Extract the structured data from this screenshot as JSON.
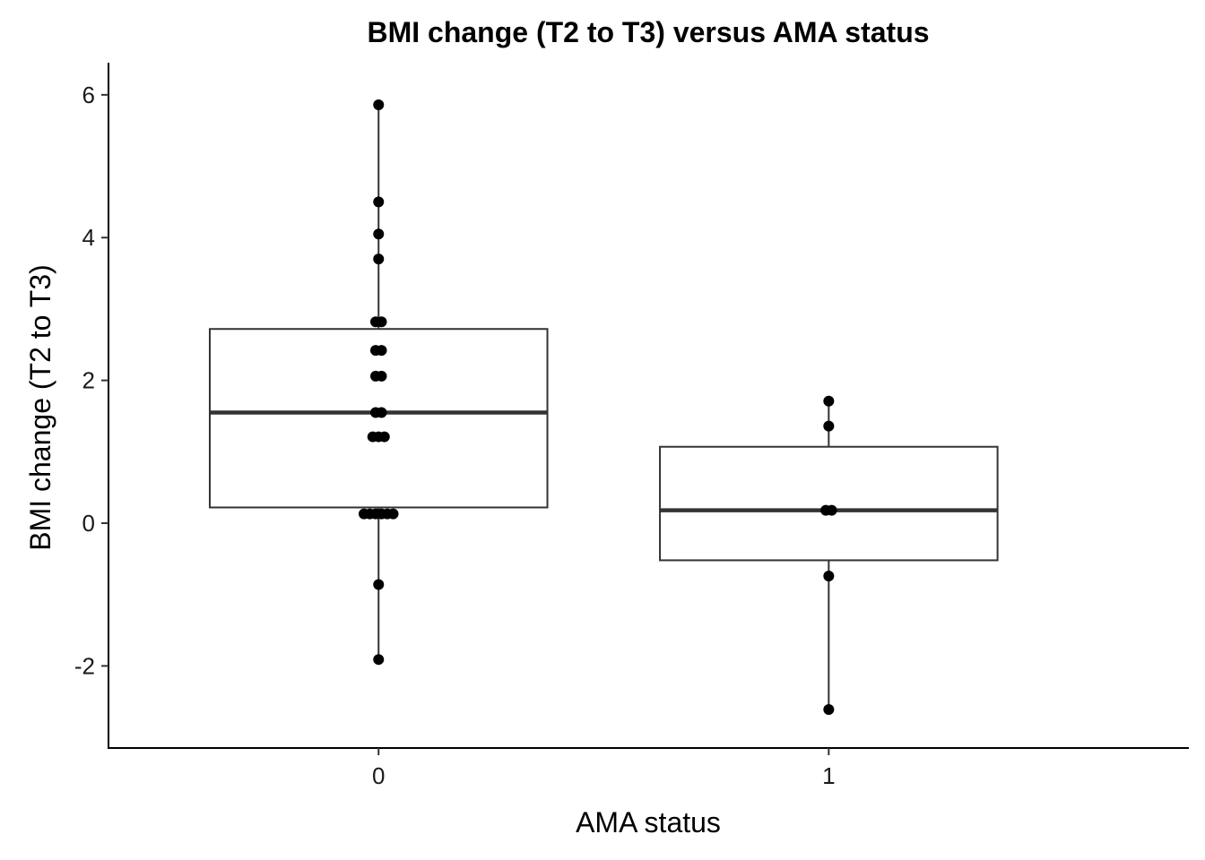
{
  "chart_data": {
    "type": "boxplot",
    "title": "BMI change (T2 to T3) versus AMA status",
    "xlabel": "AMA status",
    "ylabel": "BMI change (T2 to T3)",
    "categories": [
      "0",
      "1"
    ],
    "ylim": [
      -3.15,
      6.45
    ],
    "y_ticks": [
      -2,
      0,
      2,
      4,
      6
    ],
    "y_tick_labels": [
      "-2",
      "0",
      "2",
      "4",
      "6"
    ],
    "grid": false,
    "legend": "none",
    "boxes": [
      {
        "category": "0",
        "q1": 0.22,
        "median": 1.55,
        "q3": 2.72,
        "whisker_low": -1.91,
        "whisker_high": 5.86
      },
      {
        "category": "1",
        "q1": -0.52,
        "median": 0.18,
        "q3": 1.07,
        "whisker_low": -2.61,
        "whisker_high": 1.71
      }
    ],
    "points": [
      {
        "category": "0",
        "values": [
          5.86,
          4.5,
          4.05,
          3.7,
          2.82,
          2.82,
          2.42,
          2.42,
          2.06,
          2.06,
          1.55,
          1.55,
          1.21,
          1.21,
          1.21,
          0.13,
          0.13,
          0.13,
          0.13,
          0.13,
          0.13,
          -0.86,
          -1.91
        ]
      },
      {
        "category": "1",
        "values": [
          1.71,
          1.36,
          0.18,
          0.18,
          -0.74,
          -2.61
        ]
      }
    ]
  }
}
